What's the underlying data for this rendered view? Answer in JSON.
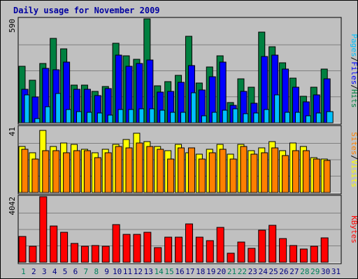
{
  "chart_data": {
    "type": "bar",
    "title": "Daily usage for November 2009",
    "categories": [
      "1",
      "2",
      "3",
      "4",
      "5",
      "6",
      "7",
      "8",
      "9",
      "10",
      "11",
      "12",
      "13",
      "14",
      "15",
      "16",
      "17",
      "18",
      "19",
      "20",
      "21",
      "22",
      "23",
      "24",
      "25",
      "26",
      "27",
      "28",
      "29",
      "30",
      "31"
    ],
    "weekend_days": [
      "1",
      "7",
      "8",
      "14",
      "15",
      "21",
      "22",
      "28",
      "29"
    ],
    "panels": [
      {
        "id": "hits-files-pages",
        "ymax": 590,
        "ymax_label": "590",
        "series": [
          {
            "name": "Hits",
            "color": "#008040",
            "values": [
              320,
              240,
              335,
              480,
              420,
              215,
              215,
              180,
              205,
              450,
              380,
              360,
              590,
              210,
              235,
              270,
              490,
              225,
              315,
              380,
              115,
              250,
              200,
              515,
              430,
              340,
              255,
              150,
              200,
              305,
              0
            ]
          },
          {
            "name": "Files",
            "color": "#0000ff",
            "values": [
              190,
              145,
              310,
              300,
              345,
              190,
              190,
              155,
              195,
              385,
              320,
              335,
              355,
              175,
              180,
              230,
              325,
              185,
              260,
              345,
              100,
              180,
              110,
              375,
              385,
              305,
              200,
              120,
              160,
              250,
              0
            ]
          },
          {
            "name": "Pages",
            "color": "#00c0ff",
            "values": [
              160,
              25,
              90,
              165,
              75,
              65,
              60,
              55,
              45,
              75,
              75,
              80,
              80,
              70,
              60,
              60,
              170,
              40,
              60,
              70,
              80,
              50,
              55,
              75,
              160,
              60,
              60,
              40,
              55,
              65,
              0
            ]
          }
        ],
        "legend_labels": [
          "Pages",
          "Files",
          "Hits"
        ]
      },
      {
        "id": "visits-sites",
        "ymax": 41,
        "ymax_label": "41",
        "series": [
          {
            "name": "Visits",
            "color": "#ffff00",
            "values": [
              29,
              25,
              39,
              29,
              31,
              30,
              27,
              25,
              27,
              30,
              33,
              37,
              32,
              29,
              26,
              30,
              25,
              24,
              27,
              30,
              24,
              30,
              26,
              28,
              32,
              26,
              31,
              29,
              22,
              21,
              0
            ]
          },
          {
            "name": "Sites",
            "color": "#ff8000",
            "values": [
              27,
              21,
              26,
              26,
              25,
              26,
              26,
              22,
              25,
              29,
              28,
              31,
              29,
              27,
              21,
              28,
              28,
              21,
              25,
              27,
              21,
              29,
              24,
              25,
              28,
              23,
              26,
              26,
              21,
              20,
              0
            ]
          }
        ],
        "legend_labels": [
          "Sites",
          "Visits"
        ]
      },
      {
        "id": "kbytes",
        "ymax": 4042,
        "ymax_label": "4042",
        "series": [
          {
            "name": "KBytes",
            "color": "#ff0000",
            "values": [
              1600,
              975,
              4042,
              2230,
              1870,
              1180,
              1000,
              1040,
              1000,
              2330,
              1730,
              1730,
              1850,
              910,
              1560,
              1540,
              2360,
              1540,
              1330,
              2130,
              560,
              1240,
              870,
              1960,
              2300,
              1470,
              1030,
              820,
              990,
              1510,
              0
            ]
          }
        ],
        "legend_labels": [
          "KBytes"
        ]
      }
    ],
    "colors": {
      "title": "#0000a0",
      "plot_bg": "#c0c0c0",
      "grid": "#808080",
      "weekend_label": "#00805c",
      "weekday_label": "#000080",
      "separator": "#000000",
      "outline": "#000000"
    },
    "legend_separator": "/"
  }
}
